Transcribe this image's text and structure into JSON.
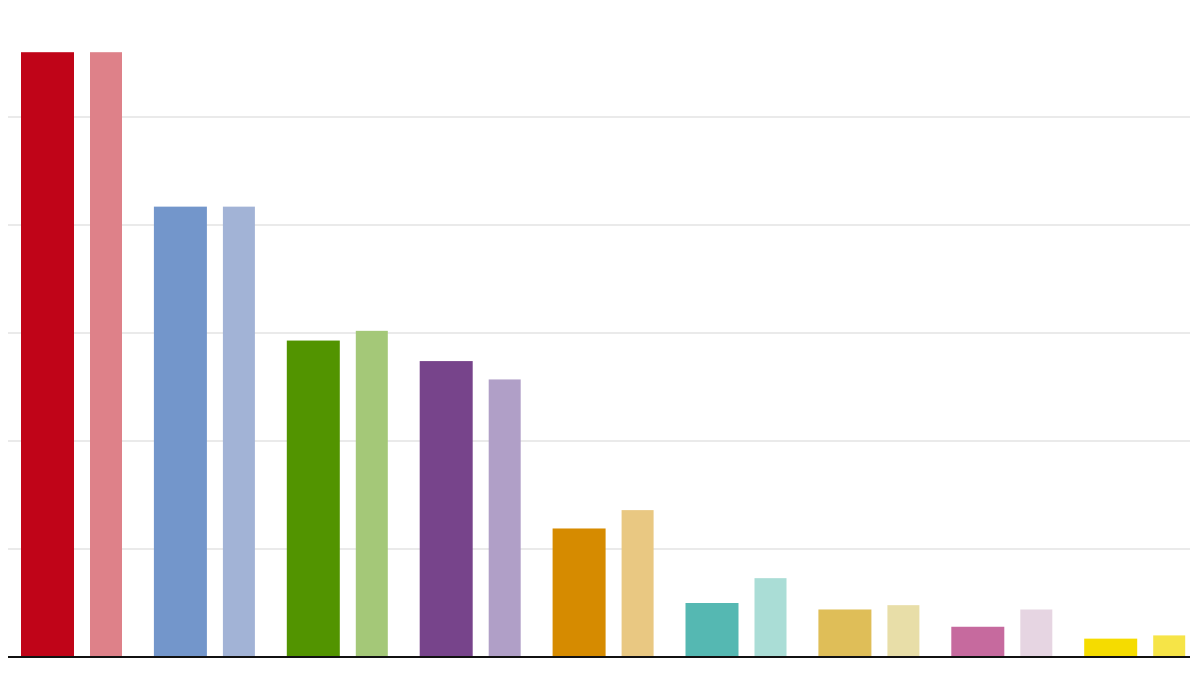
{
  "chart_data": {
    "type": "bar",
    "title": "",
    "xlabel": "",
    "ylabel": "",
    "ylim": [
      0,
      6
    ],
    "grid": true,
    "gridlines": [
      1,
      2,
      3,
      4,
      5
    ],
    "tick_labels_visible": false,
    "legend": "none",
    "groups": [
      {
        "values": [
          5.6,
          5.6
        ],
        "colors": [
          "#c00418",
          "#de8189"
        ]
      },
      {
        "values": [
          4.17,
          4.17
        ],
        "colors": [
          "#7396cb",
          "#a2b3d6"
        ]
      },
      {
        "values": [
          2.93,
          3.02
        ],
        "colors": [
          "#529400",
          "#a4c878"
        ]
      },
      {
        "values": [
          2.74,
          2.57
        ],
        "colors": [
          "#77448b",
          "#b09fc7"
        ]
      },
      {
        "values": [
          1.19,
          1.36
        ],
        "colors": [
          "#d68b00",
          "#e9c882"
        ]
      },
      {
        "values": [
          0.5,
          0.73
        ],
        "colors": [
          "#55b8b2",
          "#aaddd6"
        ]
      },
      {
        "values": [
          0.44,
          0.48
        ],
        "colors": [
          "#dfbe58",
          "#e8dea8"
        ]
      },
      {
        "values": [
          0.28,
          0.44
        ],
        "colors": [
          "#c66a9e",
          "#e6d5e2"
        ]
      },
      {
        "values": [
          0.17,
          0.2
        ],
        "colors": [
          "#f5dc00",
          "#f6e447"
        ]
      }
    ]
  }
}
